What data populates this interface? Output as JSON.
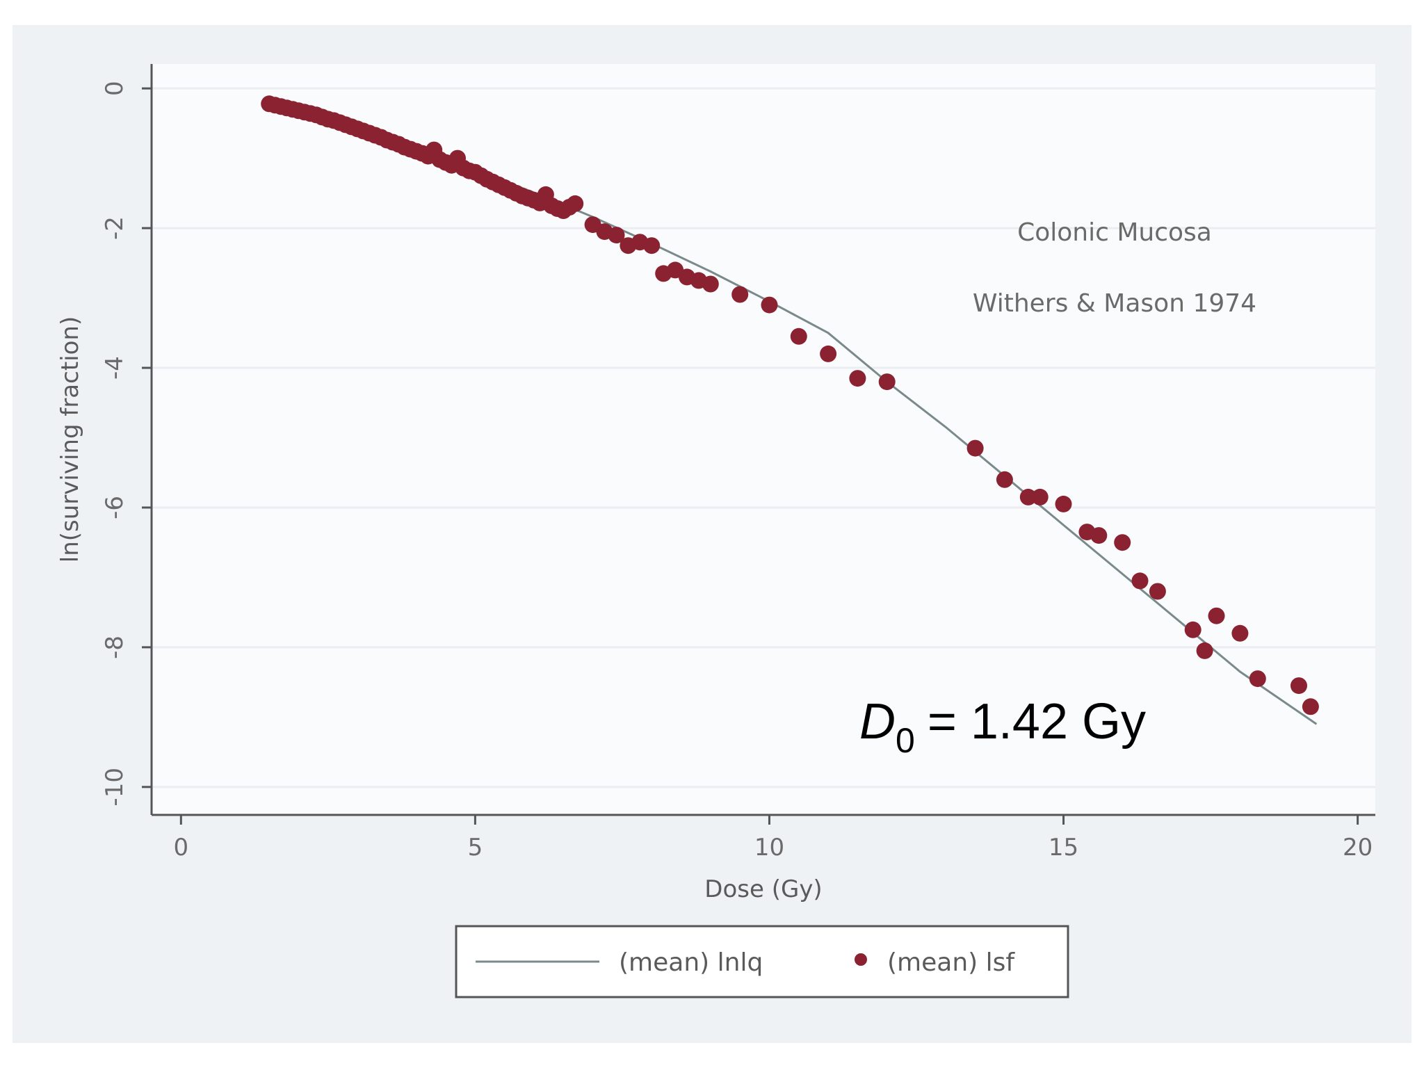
{
  "chart_data": {
    "type": "scatter",
    "xlabel": "Dose (Gy)",
    "ylabel": "ln(surviving fraction)",
    "xlim": [
      -0.5,
      20.3
    ],
    "ylim": [
      -10.4,
      0.35
    ],
    "x_ticks": [
      "0",
      "5",
      "10",
      "15",
      "20"
    ],
    "y_ticks": [
      "0",
      "-2",
      "-4",
      "-6",
      "-8",
      "-10"
    ],
    "grid": "horizontal",
    "legend_position": "bottom",
    "annotations": {
      "line1": "Colonic Mucosa",
      "line2": "Withers & Mason 1974",
      "d0_symbol": "D",
      "d0_subscript": "0",
      "d0_value": "= 1.42 Gy"
    },
    "series": [
      {
        "name": "(mean) lnlq",
        "type": "line",
        "color": "#7a8a8a",
        "x": [
          1.5,
          2,
          3,
          4,
          5,
          6,
          7,
          8,
          9,
          10,
          11,
          12,
          13,
          14,
          15,
          16,
          17,
          18,
          19.3
        ],
        "y": [
          -0.25,
          -0.36,
          -0.6,
          -0.87,
          -1.17,
          -1.49,
          -1.84,
          -2.22,
          -2.62,
          -3.05,
          -3.5,
          -4.2,
          -4.85,
          -5.55,
          -6.25,
          -6.95,
          -7.65,
          -8.35,
          -9.1
        ]
      },
      {
        "name": "(mean) lsf",
        "type": "scatter",
        "color": "#8b2232",
        "x": [
          1.5,
          1.6,
          1.7,
          1.8,
          1.9,
          2.0,
          2.1,
          2.2,
          2.3,
          2.4,
          2.5,
          2.6,
          2.7,
          2.8,
          2.9,
          3.0,
          3.1,
          3.2,
          3.3,
          3.4,
          3.5,
          3.6,
          3.7,
          3.8,
          3.9,
          4.0,
          4.1,
          4.2,
          4.3,
          4.4,
          4.5,
          4.6,
          4.7,
          4.8,
          4.9,
          5.0,
          5.1,
          5.2,
          5.3,
          5.4,
          5.5,
          5.6,
          5.7,
          5.8,
          5.9,
          6.0,
          6.1,
          6.2,
          6.3,
          6.4,
          6.5,
          6.6,
          6.7,
          7.0,
          7.2,
          7.4,
          7.6,
          7.8,
          8.0,
          8.2,
          8.4,
          8.6,
          8.8,
          9.0,
          9.5,
          10.0,
          10.5,
          11.0,
          11.5,
          12.0,
          13.5,
          14.0,
          14.4,
          14.6,
          15.0,
          15.4,
          15.6,
          16.0,
          16.3,
          16.6,
          17.2,
          17.4,
          17.6,
          18.0,
          18.3,
          19.0,
          19.2
        ],
        "y": [
          -0.22,
          -0.24,
          -0.26,
          -0.28,
          -0.3,
          -0.32,
          -0.34,
          -0.36,
          -0.38,
          -0.41,
          -0.44,
          -0.46,
          -0.49,
          -0.52,
          -0.55,
          -0.58,
          -0.61,
          -0.64,
          -0.67,
          -0.7,
          -0.74,
          -0.77,
          -0.8,
          -0.84,
          -0.87,
          -0.9,
          -0.93,
          -0.97,
          -0.88,
          -1.02,
          -1.06,
          -1.1,
          -1.0,
          -1.14,
          -1.18,
          -1.2,
          -1.25,
          -1.3,
          -1.34,
          -1.38,
          -1.42,
          -1.46,
          -1.5,
          -1.54,
          -1.57,
          -1.6,
          -1.64,
          -1.52,
          -1.68,
          -1.72,
          -1.75,
          -1.7,
          -1.65,
          -1.95,
          -2.05,
          -2.1,
          -2.25,
          -2.2,
          -2.25,
          -2.65,
          -2.6,
          -2.7,
          -2.75,
          -2.8,
          -2.95,
          -3.1,
          -3.55,
          -3.8,
          -4.15,
          -4.2,
          -5.15,
          -5.6,
          -5.85,
          -5.85,
          -5.95,
          -6.35,
          -6.4,
          -6.5,
          -7.05,
          -7.2,
          -7.75,
          -8.05,
          -7.55,
          -7.8,
          -8.45,
          -8.55,
          -8.85
        ]
      }
    ]
  }
}
